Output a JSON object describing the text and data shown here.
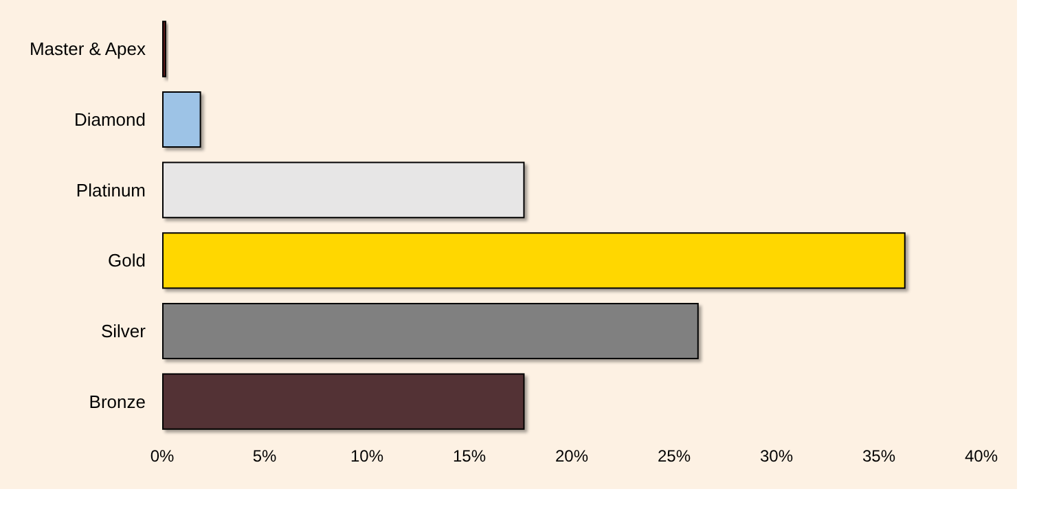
{
  "chart_data": {
    "type": "bar",
    "orientation": "horizontal",
    "categories": [
      "Master & Apex",
      "Diamond",
      "Platinum",
      "Gold",
      "Silver",
      "Bronze"
    ],
    "values": [
      0.2,
      1.9,
      17.7,
      36.3,
      26.2,
      17.7
    ],
    "colors": [
      "#5a1a1a",
      "#9dc3e6",
      "#e7e6e6",
      "#ffd700",
      "#808080",
      "#523234"
    ],
    "xlim": [
      0,
      40
    ],
    "xticks": [
      {
        "value": 0,
        "label": "0%"
      },
      {
        "value": 5,
        "label": "5%"
      },
      {
        "value": 10,
        "label": "10%"
      },
      {
        "value": 15,
        "label": "15%"
      },
      {
        "value": 20,
        "label": "20%"
      },
      {
        "value": 25,
        "label": "25%"
      },
      {
        "value": 30,
        "label": "30%"
      },
      {
        "value": 35,
        "label": "35%"
      },
      {
        "value": 40,
        "label": "40%"
      }
    ],
    "grid": false
  }
}
